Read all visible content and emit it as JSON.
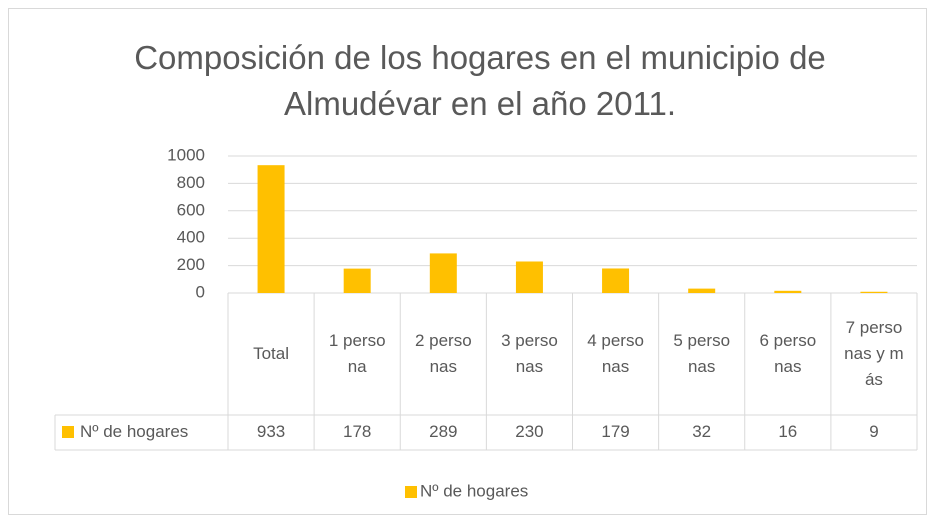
{
  "chart_data": {
    "type": "bar",
    "title": "Composición de los hogares en el municipio de Almudévar en el año 2011.",
    "categories": [
      "Total",
      "1 persona",
      "2 personas",
      "3 personas",
      "4 personas",
      "5 personas",
      "6 personas",
      "7 personas y más"
    ],
    "series": [
      {
        "name": "Nº de hogares",
        "color": "#FFC000",
        "values": [
          933,
          178,
          289,
          230,
          179,
          32,
          16,
          9
        ]
      }
    ],
    "ylim": [
      0,
      1000
    ],
    "yticks": [
      0,
      200,
      400,
      600,
      800,
      1000
    ],
    "grid": true,
    "legend": "bottom"
  }
}
